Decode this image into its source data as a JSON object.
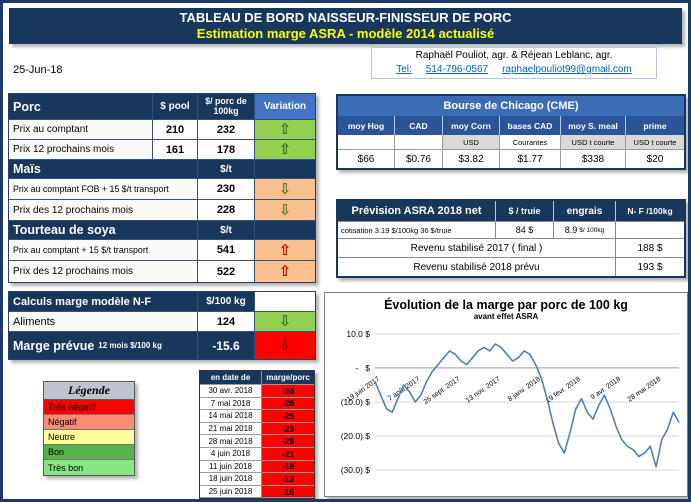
{
  "header": {
    "title_line1": "TABLEAU DE BORD NAISSEUR-FINISSEUR DE PORC",
    "title_line2": "Estimation marge ASRA - modèle 2014 actualisé"
  },
  "date": "25-Jun-18",
  "contact": {
    "names": "Raphaël Pouliot, agr.   &   Réjean Leblanc, agr.",
    "tel_label": "Tel:",
    "phone": "514-796-0567",
    "email": "raphaelpouliot99@gmail.com"
  },
  "porc_table": {
    "title": "Porc",
    "col_pool": "$ pool",
    "col_value": "$/ porc de 100kg",
    "col_variation": "Variation",
    "rows": [
      {
        "label": "Prix au comptant",
        "pool": "210",
        "value": "232",
        "arrow": "⇧"
      },
      {
        "label": "Prix 12 prochains mois",
        "pool": "161",
        "value": "178",
        "arrow": "⇧"
      }
    ],
    "mais": {
      "title": "Maïs",
      "unit": "$/t",
      "rows": [
        {
          "label": "Prix au comptant FOB + 15 $/t transport",
          "value": "230",
          "arrow": "⇩"
        },
        {
          "label": "Prix des 12 prochains mois",
          "value": "228",
          "arrow": "⇩"
        }
      ]
    },
    "soya": {
      "title": "Tourteau de soya",
      "unit": "$/t",
      "rows": [
        {
          "label": "Prix au comptant + 15 $/t transport",
          "value": "541",
          "arrow": "⇧"
        },
        {
          "label": "Prix des 12 prochains mois",
          "value": "522",
          "arrow": "⇧"
        }
      ]
    }
  },
  "calc_table": {
    "title": "Calculs marge  modèle N-F",
    "unit": "$/100 kg",
    "aliments": {
      "label": "Aliments",
      "value": "124",
      "arrow": "⇩"
    },
    "marge": {
      "label": "Marge prévue",
      "sublabel": "12 mois  $/100 kg",
      "value": "-15.6",
      "arrow": "⇩"
    }
  },
  "legende": {
    "title": "Légende",
    "items": [
      "Très négatif",
      "Négatif",
      "Neutre",
      "Bon",
      "Très bon"
    ]
  },
  "marge_table": {
    "col_date": "en date de",
    "col_value": "marge/porc",
    "rows": [
      {
        "date": "30 avr. 2018",
        "value": "-24"
      },
      {
        "date": "7 mai 2018",
        "value": "-26"
      },
      {
        "date": "14 mai 2018",
        "value": "-25"
      },
      {
        "date": "21 mai 2018",
        "value": "-23"
      },
      {
        "date": "28 mai 2018",
        "value": "-29"
      },
      {
        "date": "4 juin 2018",
        "value": "-21"
      },
      {
        "date": "11 juin 2018",
        "value": "-18"
      },
      {
        "date": "18 juin 2018",
        "value": "-13"
      },
      {
        "date": "25 juin 2018",
        "value": "-16"
      }
    ]
  },
  "cme_table": {
    "title": "Bourse de Chicago (CME)",
    "columns": [
      {
        "header": "moy Hog",
        "sub": "",
        "value": "$66"
      },
      {
        "header": "CAD",
        "sub": "",
        "value": "$0.76"
      },
      {
        "header": "moy Corn",
        "sub": "USD",
        "value": "$3.82"
      },
      {
        "header": "bases CAD",
        "sub": "Courantes",
        "value": "$1.77"
      },
      {
        "header": "moy S. meal",
        "sub": "USD t courte",
        "value": "$338"
      },
      {
        "header": "prime",
        "sub": "USD t courte",
        "value": "$20"
      }
    ]
  },
  "asra_table": {
    "title": "Prévision ASRA 2018 net",
    "col_truie": "$ / truie",
    "col_engrais": "engrais",
    "col_nf": "N- F /100kg",
    "cotisation_label": "cotisation 3.19 $/100kg  36 $/truie",
    "truie_value": "84 $",
    "engrais_value": "8.9",
    "engrais_unit": "$/ 100kg",
    "rows": [
      {
        "label": "Revenu stabilisé 2017 ( final )",
        "value": "188 $"
      },
      {
        "label": "Revenu stabilisé 2018 prévu",
        "value": "193 $"
      }
    ]
  },
  "colors": {
    "header_navy": "#17375D",
    "variation_header_blue": "#4472C4",
    "favorable_green": "#92D050",
    "caution_salmon": "#FAC08F",
    "negative_red": "#FF0000",
    "chart_line_blue": "#4F81BD"
  },
  "chart_data": {
    "type": "line",
    "title": "Évolution de la marge par porc de 100 kg",
    "subtitle": "avant effet ASRA",
    "grid": true,
    "legend": false,
    "ylim": [
      -32,
      12
    ],
    "ytick_values": [
      10,
      0,
      -10,
      -20,
      -30
    ],
    "ytick_labels": [
      "10.0 $",
      "-   $",
      "(10.0) $",
      "(20.0) $",
      "(30.0) $"
    ],
    "xtick_positions": [
      0,
      7,
      14,
      21,
      28,
      35,
      42,
      49
    ],
    "xtick_labels": [
      "19 juin 2017",
      "7 août 2017",
      "25 sept. 2017",
      "13 nov. 2017",
      "8 janv. 2018",
      "19 févr. 2018",
      "9 avr. 2018",
      "28 mai 2018"
    ],
    "series": [
      {
        "name": "marge par porc avant ASRA",
        "color": "#4F81BD",
        "values": [
          -4,
          -8,
          -12,
          -13,
          -9,
          -5,
          -7,
          -10,
          -8,
          -4,
          -1,
          1,
          3,
          5,
          4,
          2,
          1,
          3,
          5,
          6,
          5,
          7,
          6,
          4,
          2,
          3,
          5,
          4,
          1,
          -3,
          -9,
          -16,
          -22,
          -25,
          -19,
          -12,
          -9,
          -13,
          -15,
          -11,
          -8,
          -12,
          -17,
          -21,
          -23,
          -24,
          -26,
          -25,
          -23,
          -29,
          -21,
          -18,
          -13,
          -16
        ]
      }
    ]
  }
}
